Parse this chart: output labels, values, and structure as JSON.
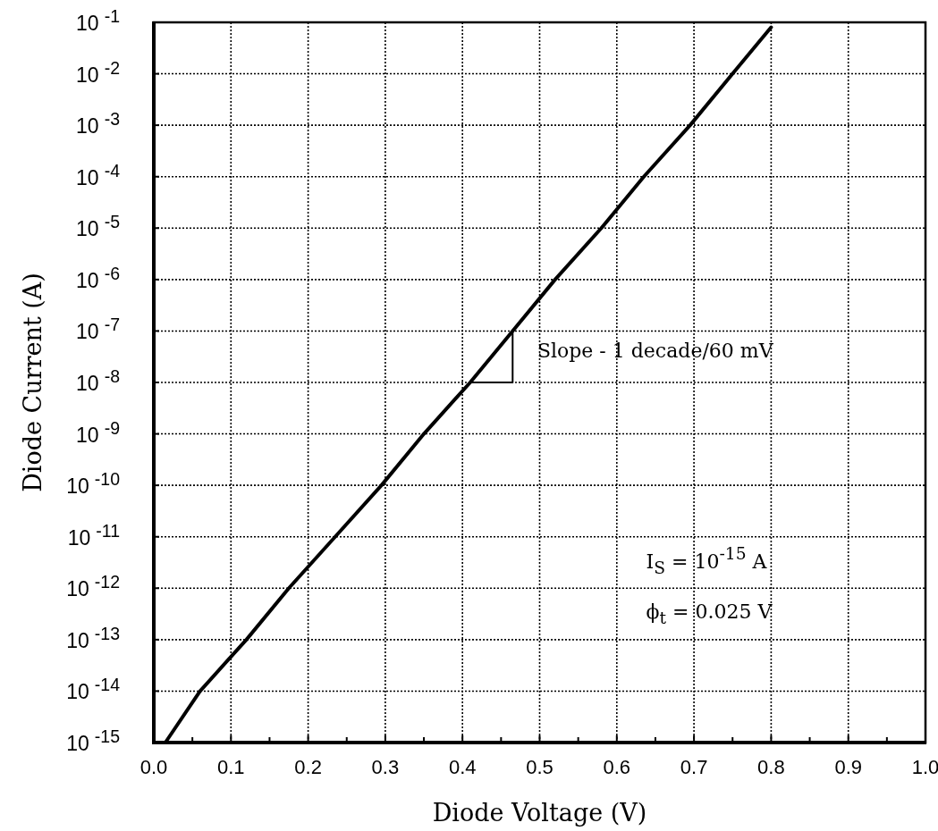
{
  "chart_data": {
    "type": "line",
    "xlabel": "Diode Voltage (V)",
    "ylabel": "Diode Current (A)",
    "log": "y",
    "grid": true,
    "xlim": [
      0,
      1
    ],
    "xticks": [
      {
        "value": 0,
        "label": "0.0"
      },
      {
        "value": 0.05,
        "label": null
      },
      0.1,
      {
        "value": 0.15,
        "label": null
      },
      0.2,
      {
        "value": 0.25,
        "label": null
      },
      0.3,
      {
        "value": 0.35,
        "label": null
      },
      0.4,
      {
        "value": 0.45,
        "label": null
      },
      0.5,
      {
        "value": 0.55,
        "label": null
      },
      0.6,
      {
        "value": 0.65,
        "label": null
      },
      0.7,
      {
        "value": 0.75,
        "label": null
      },
      0.8,
      {
        "value": 0.85,
        "label": null
      },
      0.9,
      {
        "value": 0.95,
        "label": null
      },
      {
        "value": 1,
        "label": "1.0"
      }
    ],
    "ylim": [
      1e-15,
      0.1
    ],
    "yticks": [
      {
        "value": 1e-15,
        "label": "10$^{-15}$"
      },
      {
        "value": 1e-14,
        "label": "10$^{-14}$"
      },
      {
        "value": 1e-13,
        "label": "10$^{-13}$"
      },
      {
        "value": 1e-12,
        "label": "10$^{-12}$"
      },
      {
        "value": 1e-11,
        "label": "10$^{-11}$"
      },
      {
        "value": 1e-10,
        "label": "10$^{-10}$"
      },
      {
        "value": 1e-09,
        "label": "10$^{-9}$"
      },
      {
        "value": 1e-08,
        "label": "10$^{-8}$"
      },
      {
        "value": 1e-07,
        "label": "10$^{-7}$"
      },
      {
        "value": 1e-06,
        "label": "10$^{-6}$"
      },
      {
        "value": 1e-05,
        "label": "10$^{-5}$"
      },
      {
        "value": 0.0001,
        "label": "10$^{-4}$"
      },
      {
        "value": 0.001,
        "label": "10$^{-3}$"
      },
      {
        "value": 0.01,
        "label": "10$^{-2}$"
      },
      {
        "value": 0.1,
        "label": "10$^{-1}$"
      }
    ],
    "series": [
      {
        "color": "#000000",
        "x": [
          0.015,
          0.06,
          0.12,
          0.175,
          0.235,
          0.295,
          0.35,
          0.41,
          0.465,
          0.52,
          0.58,
          0.635,
          0.695,
          0.75,
          0.8
        ],
        "values": [
          1e-15,
          1e-14,
          1e-13,
          1e-12,
          1e-11,
          1e-10,
          1e-09,
          1e-08,
          1e-07,
          1e-06,
          1e-05,
          0.0001,
          0.001,
          0.01,
          0.08
        ]
      },
      {
        "color": "#000000",
        "x": [
          0.41,
          0.465,
          0.465
        ],
        "values": [
          1e-08,
          1e-08,
          1e-07
        ]
      }
    ],
    "annotations": [
      "Slope - 1 decade/60 mV",
      "I$_{S}$ = 10$^{-15}$ A",
      "ϕ$_{t}$ = 0.025 V"
    ]
  }
}
